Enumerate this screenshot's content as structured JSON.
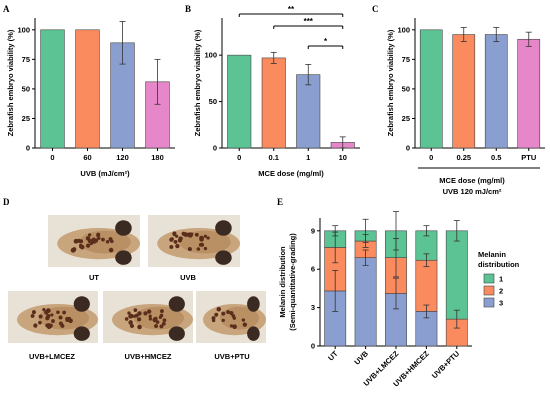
{
  "chart_data": [
    {
      "panel": "A",
      "type": "bar",
      "ylabel": "Zebrafish embryo viability (%)",
      "xlabel": "UVB (mJ/cm²)",
      "categories": [
        "0",
        "60",
        "120",
        "180"
      ],
      "values": [
        100,
        100,
        89,
        56
      ],
      "errors": [
        0,
        0,
        18,
        19
      ],
      "colors": [
        "#5cc494",
        "#f98b5e",
        "#8a9fd0",
        "#e587c8"
      ],
      "ylim": [
        0,
        110
      ],
      "yticks": [
        "0",
        "25",
        "50",
        "75",
        "100"
      ]
    },
    {
      "panel": "B",
      "type": "bar",
      "ylabel": "Zebrafish embryo viability (%)",
      "xlabel": "MCE dose (mg/ml)",
      "categories": [
        "0",
        "0.1",
        "1",
        "10"
      ],
      "values": [
        100,
        97,
        79,
        6
      ],
      "errors": [
        0,
        6,
        11,
        6
      ],
      "colors": [
        "#5cc494",
        "#f98b5e",
        "#8a9fd0",
        "#e587c8"
      ],
      "ylim": [
        0,
        140
      ],
      "yticks": [
        "0",
        "50",
        "100"
      ],
      "significance": [
        {
          "from": 0,
          "to": 3,
          "label": "**"
        },
        {
          "from": 1,
          "to": 3,
          "label": "***"
        },
        {
          "from": 2,
          "to": 3,
          "label": "*"
        }
      ]
    },
    {
      "panel": "C",
      "type": "bar",
      "ylabel": "Zebrafish embryo viability (%)",
      "xlabel": "MCE dose (mg/ml)",
      "xlabel2": "UVB 120 mJ/cm²",
      "categories": [
        "0",
        "0.25",
        "0.5",
        "PTU"
      ],
      "values": [
        100,
        96,
        96,
        92
      ],
      "errors": [
        0,
        6,
        6,
        6
      ],
      "colors": [
        "#5cc494",
        "#f98b5e",
        "#8a9fd0",
        "#e587c8"
      ],
      "ylim": [
        0,
        110
      ],
      "yticks": [
        "0",
        "25",
        "50",
        "75",
        "100"
      ]
    },
    {
      "panel": "E",
      "type": "bar",
      "stacked": true,
      "ylabel": "Melanin distribution",
      "ylabel2": "(Semi-quantitative-grading)",
      "categories": [
        "UT",
        "UVB",
        "UVB+LMCEZ",
        "UVB+HMCEZ",
        "UVB+PTU"
      ],
      "series": [
        {
          "name": "3",
          "color": "#8a9fd0",
          "values": [
            4.3,
            6.9,
            4.1,
            2.7,
            0.0
          ],
          "errors": [
            1.6,
            0.6,
            1.2,
            0.5,
            0.0
          ]
        },
        {
          "name": "2",
          "color": "#f98b5e",
          "values": [
            3.4,
            1.3,
            2.8,
            4.0,
            2.1
          ],
          "errors": [
            1.2,
            0.5,
            1.5,
            0.5,
            0.7
          ]
        },
        {
          "name": "1",
          "color": "#5cc494",
          "values": [
            1.3,
            0.8,
            2.1,
            2.3,
            6.9
          ],
          "errors": [
            0.4,
            0.9,
            1.5,
            0.4,
            0.8
          ]
        }
      ],
      "ylim": [
        0,
        10
      ],
      "yticks": [
        "0",
        "3",
        "6",
        "9"
      ],
      "legend_title": "Melanin distribution",
      "legend_title_lines": [
        "Melanin",
        "distribution"
      ],
      "legend_entries": [
        "1",
        "2",
        "3"
      ],
      "legend_colors": [
        "#5cc494",
        "#f98b5e",
        "#8a9fd0"
      ]
    }
  ],
  "panel_D": {
    "label": "D",
    "images": [
      "UT",
      "UVB",
      "UVB+LMCEZ",
      "UVB+HMCEZ",
      "UVB+PTU"
    ]
  }
}
